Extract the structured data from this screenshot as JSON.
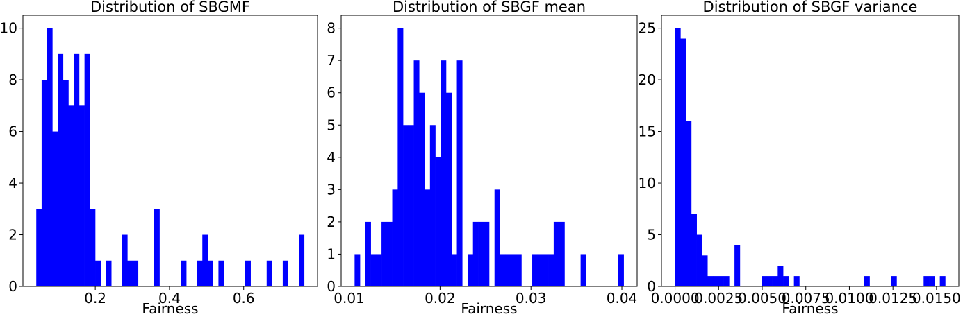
{
  "chart_data": [
    {
      "type": "histogram",
      "title": "Distribution of SBGMF",
      "x_label": "Fairness",
      "color": "#0000ff",
      "bins": [
        0.041,
        0.0554,
        0.0699,
        0.0843,
        0.0988,
        0.1132,
        0.1276,
        0.1421,
        0.1565,
        0.171,
        0.1854,
        0.1998,
        0.2143,
        0.2287,
        0.2432,
        0.2576,
        0.272,
        0.2865,
        0.3009,
        0.3154,
        0.3298,
        0.3442,
        0.3587,
        0.3731,
        0.3876,
        0.402,
        0.4164,
        0.4309,
        0.4453,
        0.4598,
        0.4742,
        0.4886,
        0.5031,
        0.5175,
        0.532,
        0.5464,
        0.5608,
        0.5753,
        0.5897,
        0.6042,
        0.6186,
        0.633,
        0.6475,
        0.6619,
        0.6764,
        0.6908,
        0.7052,
        0.7197,
        0.7341,
        0.7486,
        0.763
      ],
      "values": [
        3,
        8,
        10,
        6,
        9,
        8,
        7,
        9,
        7,
        9,
        3,
        1,
        0,
        1,
        0,
        0,
        2,
        1,
        1,
        0,
        0,
        0,
        3,
        0,
        0,
        0,
        0,
        1,
        0,
        0,
        1,
        2,
        1,
        0,
        1,
        0,
        0,
        0,
        0,
        1,
        0,
        0,
        0,
        1,
        0,
        0,
        1,
        0,
        0,
        2
      ],
      "xlim": [
        0.005,
        0.799
      ],
      "xticks": [
        0.2,
        0.4,
        0.6
      ],
      "ylim": [
        0,
        10.5
      ],
      "yticks": [
        0,
        2,
        4,
        6,
        8,
        10
      ]
    },
    {
      "type": "histogram",
      "title": "Distribution of SBGF mean",
      "x_label": "Fairness",
      "color": "#0000ff",
      "bins": [
        0.0106,
        0.01119,
        0.01178,
        0.01238,
        0.01297,
        0.01356,
        0.01415,
        0.01474,
        0.01534,
        0.01593,
        0.01652,
        0.01711,
        0.0177,
        0.0183,
        0.01889,
        0.01948,
        0.02007,
        0.02066,
        0.02126,
        0.02185,
        0.02244,
        0.02303,
        0.02362,
        0.02422,
        0.02481,
        0.0254,
        0.02599,
        0.02658,
        0.02718,
        0.02777,
        0.02836,
        0.02895,
        0.02954,
        0.03014,
        0.03073,
        0.03132,
        0.03191,
        0.0325,
        0.0331,
        0.03369,
        0.03428,
        0.03487,
        0.03546,
        0.03606,
        0.03665,
        0.03724,
        0.03783,
        0.03842,
        0.03902,
        0.03961,
        0.0402
      ],
      "values": [
        1,
        0,
        2,
        1,
        1,
        2,
        2,
        3,
        8,
        5,
        5,
        7,
        6,
        3,
        5,
        4,
        7,
        6,
        1,
        7,
        0,
        1,
        2,
        2,
        2,
        0,
        3,
        1,
        1,
        1,
        1,
        0,
        0,
        1,
        1,
        1,
        1,
        2,
        2,
        0,
        0,
        0,
        1,
        0,
        0,
        0,
        0,
        0,
        0,
        1
      ],
      "xlim": [
        0.00912,
        0.04168
      ],
      "xticks": [
        0.01,
        0.02,
        0.03,
        0.04
      ],
      "ylim": [
        0,
        8.4
      ],
      "yticks": [
        0,
        1,
        2,
        3,
        4,
        5,
        6,
        7,
        8
      ]
    },
    {
      "type": "histogram",
      "title": "Distribution of SBGF variance",
      "x_label": "Fairness",
      "color": "#0000ff",
      "bins": [
        0,
        0.00031,
        0.00062,
        0.00093,
        0.00124,
        0.00155,
        0.00186,
        0.00217,
        0.00248,
        0.00279,
        0.0031,
        0.00341,
        0.00372,
        0.00403,
        0.00434,
        0.00465,
        0.00496,
        0.00527,
        0.00558,
        0.00589,
        0.0062,
        0.00651,
        0.00682,
        0.00713,
        0.00744,
        0.00775,
        0.00806,
        0.00837,
        0.00868,
        0.00899,
        0.0093,
        0.00961,
        0.00992,
        0.01023,
        0.01054,
        0.01085,
        0.01116,
        0.01147,
        0.01178,
        0.01209,
        0.0124,
        0.01271,
        0.01302,
        0.01333,
        0.01364,
        0.01395,
        0.01426,
        0.01457,
        0.01488,
        0.01519,
        0.0155
      ],
      "values": [
        25,
        24,
        16,
        7,
        5,
        3,
        1,
        1,
        1,
        1,
        0,
        4,
        0,
        0,
        0,
        0,
        1,
        1,
        1,
        2,
        1,
        0,
        1,
        0,
        0,
        0,
        0,
        0,
        0,
        0,
        0,
        0,
        0,
        0,
        0,
        1,
        0,
        0,
        0,
        0,
        1,
        0,
        0,
        0,
        0,
        0,
        1,
        1,
        0,
        1
      ],
      "xlim": [
        -0.00078,
        0.01628
      ],
      "xticks": [
        {
          "value": 0,
          "label": "0.0000"
        },
        {
          "value": 0.0025,
          "label": "0.0025"
        },
        {
          "value": 0.005,
          "label": "0.0050"
        },
        {
          "value": 0.0075,
          "label": "0.0075"
        },
        {
          "value": 0.01,
          "label": "0.0100"
        },
        {
          "value": 0.0125,
          "label": "0.0125"
        },
        {
          "value": 0.015,
          "label": "0.0150"
        }
      ],
      "ylim": [
        0,
        26.25
      ],
      "yticks": [
        0,
        5,
        10,
        15,
        20,
        25
      ]
    }
  ]
}
